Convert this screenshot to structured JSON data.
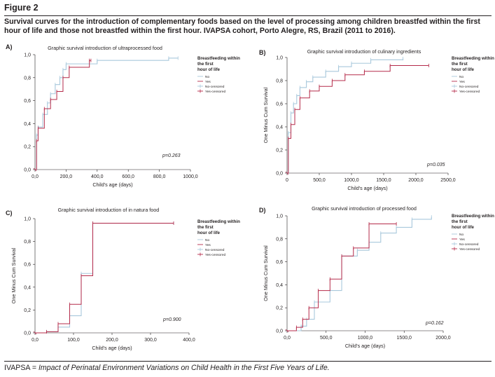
{
  "figure": {
    "label": "Figure 2",
    "caption": "Survival curves for the introduction of complementary foods based on the level of processing among children breastfed within the first hour of life and those not breastfed within the first hour. IVAPSA cohort, Porto Alegre, RS, Brazil (2011 to 2016).",
    "footnote_abbr": "IVAPSA = ",
    "footnote_text": "Impact of Perinatal Environment Variations on Child Health in the First Five Years of Life."
  },
  "colors": {
    "no": "#a8c8dc",
    "yes": "#b52b4a",
    "ink": "#231f20"
  },
  "chart_data": [
    {
      "panel": "A)",
      "type": "line",
      "title": "Graphic survival introduction of ultraprocessed food",
      "xlabel": "Child's age (days)",
      "ylabel": "",
      "xlim": [
        0,
        1000
      ],
      "ylim": [
        0,
        1.0
      ],
      "xticks": [
        "0,0",
        "200,0",
        "400,0",
        "600,0",
        "800,0",
        "1000,0"
      ],
      "yticks": [
        "0,0",
        "0,2",
        "0,4",
        "0,6",
        "0,8",
        "1,0"
      ],
      "legend": {
        "title": "Breastfeeding within the first hour of life",
        "entries": [
          "No",
          "Yes",
          "No-censored",
          "Yes-censored"
        ]
      },
      "annotation": "p=0.263",
      "series": [
        {
          "name": "No",
          "x": [
            0,
            10,
            20,
            50,
            80,
            100,
            130,
            160,
            180,
            200,
            400,
            860,
            920
          ],
          "y": [
            0,
            0.3,
            0.37,
            0.48,
            0.58,
            0.66,
            0.74,
            0.8,
            0.87,
            0.92,
            0.95,
            0.97,
            0.97
          ]
        },
        {
          "name": "Yes",
          "x": [
            0,
            10,
            20,
            60,
            100,
            140,
            180,
            220,
            350,
            360
          ],
          "y": [
            0,
            0.25,
            0.36,
            0.53,
            0.61,
            0.68,
            0.8,
            0.89,
            0.95,
            0.95
          ]
        }
      ]
    },
    {
      "panel": "B)",
      "type": "line",
      "title": "Graphic survival introduction of culinary ingredients",
      "xlabel": "Child's age (days)",
      "ylabel": "One Minus Cum Survival",
      "xlim": [
        0,
        2500
      ],
      "ylim": [
        0,
        1.0
      ],
      "xticks": [
        "0",
        "500,0",
        "1000,0",
        "1500,0",
        "2000,0",
        "2500,0"
      ],
      "yticks": [
        "0,0",
        "0,2",
        "0,4",
        "0,6",
        "0,8",
        "1,0"
      ],
      "legend": {
        "title": "Breastfeeding within the first hour of life",
        "entries": [
          "No",
          "Yes",
          "No-censored",
          "Yes-censored"
        ]
      },
      "annotation": "p=0.035",
      "series": [
        {
          "name": "No",
          "x": [
            0,
            20,
            60,
            100,
            150,
            200,
            300,
            400,
            600,
            800,
            1000,
            1300,
            1800
          ],
          "y": [
            0,
            0.35,
            0.52,
            0.6,
            0.67,
            0.74,
            0.79,
            0.83,
            0.88,
            0.92,
            0.95,
            0.98,
            0.99
          ]
        },
        {
          "name": "Yes",
          "x": [
            0,
            20,
            60,
            120,
            200,
            350,
            500,
            700,
            900,
            1200,
            1600,
            2200
          ],
          "y": [
            0,
            0.3,
            0.42,
            0.55,
            0.65,
            0.71,
            0.75,
            0.8,
            0.85,
            0.88,
            0.93,
            0.93
          ]
        }
      ]
    },
    {
      "panel": "C)",
      "type": "line",
      "title": "Graphic survival introduction of in natura food",
      "xlabel": "Child's age (days)",
      "ylabel": "One Minus Cum Survival",
      "xlim": [
        0,
        400
      ],
      "ylim": [
        0,
        1.0
      ],
      "xticks": [
        "0,0",
        "100,0",
        "200,0",
        "300,0",
        "400,0"
      ],
      "yticks": [
        "0,0",
        "0,2",
        "0,4",
        "0,6",
        "0,8",
        "1,0"
      ],
      "legend": {
        "title": "Breastfeeding within the first hour of life",
        "entries": [
          "No",
          "Yes",
          "No-censored",
          "Yes-censored"
        ]
      },
      "annotation": "p=0.900",
      "series": [
        {
          "name": "No",
          "x": [
            0,
            30,
            60,
            90,
            120,
            150,
            360
          ],
          "y": [
            0,
            0.01,
            0.05,
            0.15,
            0.52,
            0.96,
            0.96
          ]
        },
        {
          "name": "Yes",
          "x": [
            0,
            30,
            60,
            90,
            120,
            150,
            360
          ],
          "y": [
            0,
            0.01,
            0.08,
            0.25,
            0.5,
            0.96,
            0.96
          ]
        }
      ]
    },
    {
      "panel": "D)",
      "type": "line",
      "title": "Graphic survival introduction of processed food",
      "xlabel": "Child's age (days)",
      "ylabel": "One Minus Cum Survival",
      "xlim": [
        0,
        2000
      ],
      "ylim": [
        0,
        1.0
      ],
      "xticks": [
        "0,0",
        "500,0",
        "1000,0",
        "1500,0",
        "2000,0"
      ],
      "yticks": [
        "0,0",
        "0,2",
        "0,4",
        "0,6",
        "0,8",
        "1,0"
      ],
      "legend": {
        "title": "Breastfeeding within the first hour of life",
        "entries": [
          "No",
          "Yes",
          "No-censored",
          "Yes-censored"
        ]
      },
      "annotation": "p=0.162",
      "series": [
        {
          "name": "No",
          "x": [
            0,
            180,
            250,
            350,
            550,
            700,
            900,
            1050,
            1200,
            1400,
            1600,
            1850
          ],
          "y": [
            0,
            0.04,
            0.1,
            0.25,
            0.35,
            0.65,
            0.7,
            0.77,
            0.85,
            0.9,
            0.97,
            0.99
          ]
        },
        {
          "name": "Yes",
          "x": [
            0,
            120,
            200,
            280,
            400,
            550,
            700,
            850,
            1050,
            1400
          ],
          "y": [
            0,
            0.03,
            0.1,
            0.2,
            0.35,
            0.45,
            0.65,
            0.72,
            0.93,
            0.93
          ]
        }
      ]
    }
  ]
}
